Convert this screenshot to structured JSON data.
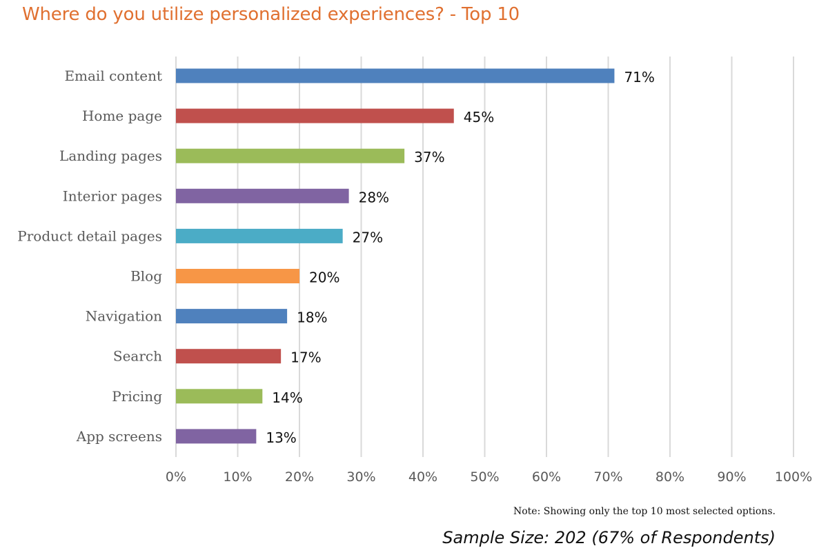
{
  "title": "Where do you utilize personalized experiences? - Top 10",
  "note": "Note: Showing only the top 10 most selected options.",
  "sample_size": "Sample Size: 202 (67% of Respondents)",
  "colors": {
    "title": "#E07030",
    "gridline": "#D9D9D9",
    "blue": "#4F81BD",
    "red": "#C0504D",
    "green": "#9BBB59",
    "purple": "#8064A2",
    "teal": "#4BACC6",
    "orange": "#F79646"
  },
  "chart_data": {
    "type": "bar",
    "orientation": "horizontal",
    "categories": [
      "Email content",
      "Home page",
      "Landing pages",
      "Interior pages",
      "Product detail pages",
      "Blog",
      "Navigation",
      "Search",
      "Pricing",
      "App screens"
    ],
    "values": [
      71,
      45,
      37,
      28,
      27,
      20,
      18,
      17,
      14,
      13
    ],
    "value_labels": [
      "71%",
      "45%",
      "37%",
      "28%",
      "27%",
      "20%",
      "18%",
      "17%",
      "14%",
      "13%"
    ],
    "bar_colors": [
      "#4F81BD",
      "#C0504D",
      "#9BBB59",
      "#8064A2",
      "#4BACC6",
      "#F79646",
      "#4F81BD",
      "#C0504D",
      "#9BBB59",
      "#8064A2"
    ],
    "x_ticks": [
      "0%",
      "10%",
      "20%",
      "30%",
      "40%",
      "50%",
      "60%",
      "70%",
      "80%",
      "90%",
      "100%"
    ],
    "xlim": [
      0,
      100
    ],
    "xlabel": "",
    "ylabel": "",
    "grid": "vertical",
    "legend": "none"
  }
}
